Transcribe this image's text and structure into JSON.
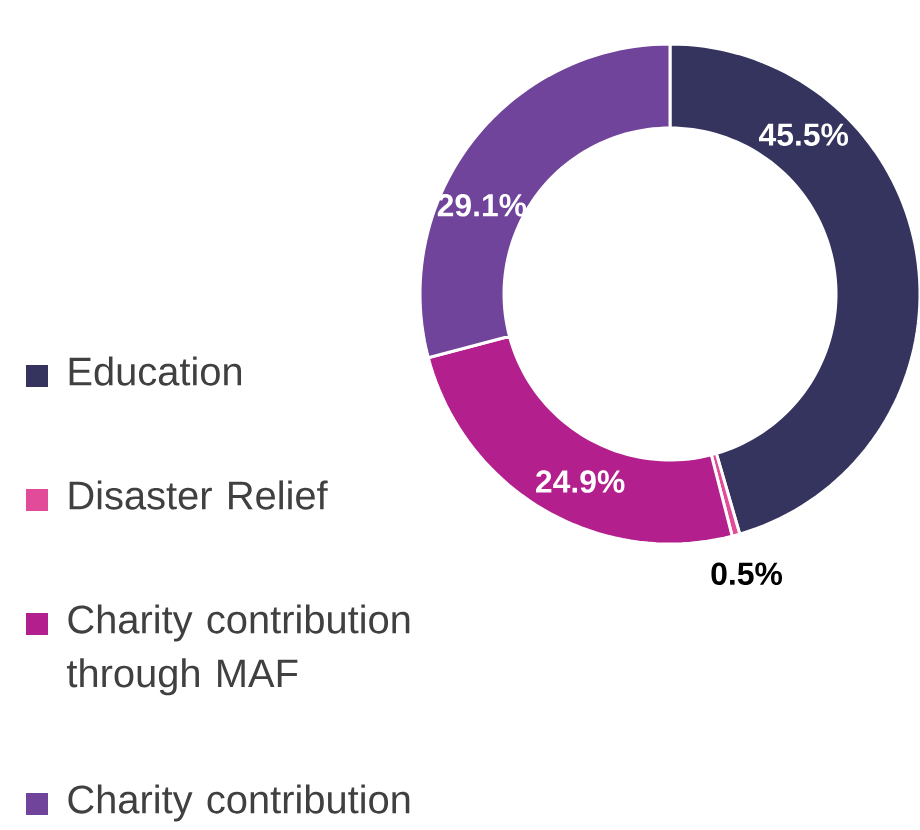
{
  "chart_data": {
    "type": "donut",
    "categories": [
      "Education",
      "Disaster Relief",
      "Charity contribution through MAF",
      "Charity contribution"
    ],
    "values": [
      45.5,
      0.5,
      24.9,
      29.1
    ],
    "colors": [
      "#35345f",
      "#e24a9a",
      "#b31f8c",
      "#70449a"
    ],
    "value_labels": [
      "45.5%",
      "0.5%",
      "24.9%",
      "29.1%"
    ],
    "legend": "left"
  }
}
